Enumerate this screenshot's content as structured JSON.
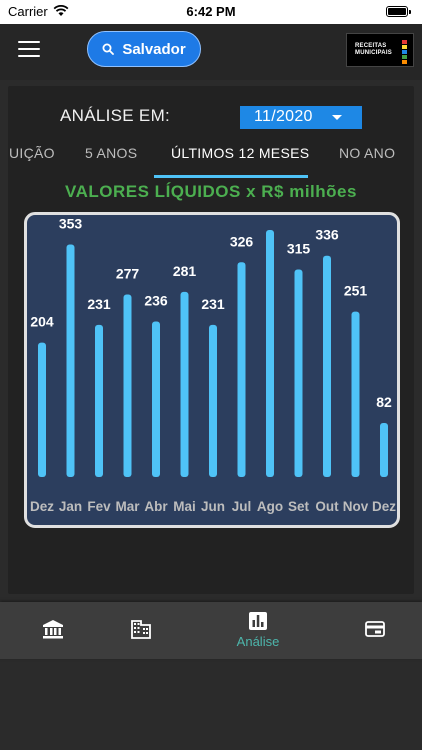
{
  "status_bar": {
    "carrier": "Carrier",
    "time": "6:42 PM"
  },
  "header": {
    "search_button_label": "Salvador",
    "logo_text": "RECEITAS MUNICIPAIS",
    "logo_colors": [
      "#e53935",
      "#fdd835",
      "#1e88e5",
      "#43a047",
      "#fb8c00"
    ]
  },
  "analysis": {
    "period_label": "ANÁLISE EM:",
    "period_value": "11/2020"
  },
  "tabs": [
    {
      "label": "UIÇÃO",
      "active": false
    },
    {
      "label": "5 ANOS",
      "active": false
    },
    {
      "label": "ÚLTIMOS 12 MESES",
      "active": true
    },
    {
      "label": "NO ANO",
      "active": false
    }
  ],
  "colors": {
    "accent": "#4fc3f7",
    "title_green": "#4caf50",
    "chart_bg": "#2c3e5e",
    "nav_active": "#4db6ac",
    "select_bg": "#1e88e5"
  },
  "chart_data": {
    "type": "bar",
    "title": "VALORES LÍQUIDOS x R$ milhões",
    "categories": [
      "Dez",
      "Jan",
      "Fev",
      "Mar",
      "Abr",
      "Mai",
      "Jun",
      "Jul",
      "Ago",
      "Set",
      "Out",
      "Nov",
      "Dez"
    ],
    "values": [
      204,
      353,
      231,
      277,
      236,
      281,
      231,
      326,
      375,
      315,
      336,
      251,
      82
    ],
    "ylim": [
      0,
      400
    ],
    "grid": false
  },
  "bottom_nav": [
    {
      "icon": "bank-icon",
      "label": ""
    },
    {
      "icon": "building-icon",
      "label": ""
    },
    {
      "icon": "chart-icon",
      "label": "Análise",
      "active": true
    },
    {
      "icon": "card-icon",
      "label": ""
    }
  ]
}
